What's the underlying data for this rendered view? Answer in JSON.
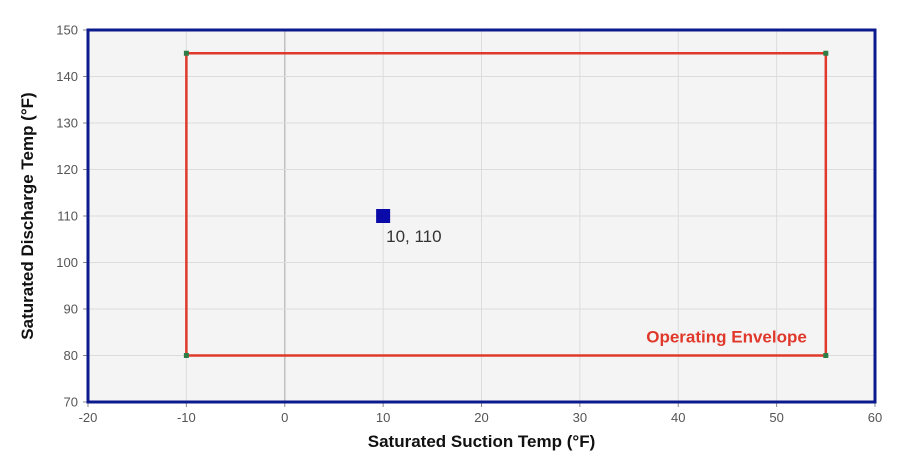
{
  "chart_data": {
    "type": "scatter",
    "xlabel": "Saturated Suction Temp (°F)",
    "ylabel": "Saturated Discharge Temp (°F)",
    "xlim": [
      -20,
      60
    ],
    "ylim": [
      70,
      150
    ],
    "xticks": [
      -20,
      -10,
      0,
      10,
      20,
      30,
      40,
      50,
      60
    ],
    "yticks": [
      70,
      80,
      90,
      100,
      110,
      120,
      130,
      140,
      150
    ],
    "grid": true,
    "zero_line_x": 0,
    "envelope": {
      "name": "Operating Envelope",
      "color": "#e0392b",
      "vertex_color": "#2e7d46",
      "points": [
        [
          -10,
          80
        ],
        [
          -10,
          145
        ],
        [
          55,
          145
        ],
        [
          55,
          80
        ]
      ]
    },
    "operating_point": {
      "x": 10,
      "y": 110,
      "label": "10, 110",
      "color": "#0a0aa8"
    },
    "colors": {
      "frame": "#0b1a8c",
      "plot_background": "#f4f4f4",
      "grid": "#dcdcdc",
      "zero_line": "#c0c0c0"
    }
  }
}
